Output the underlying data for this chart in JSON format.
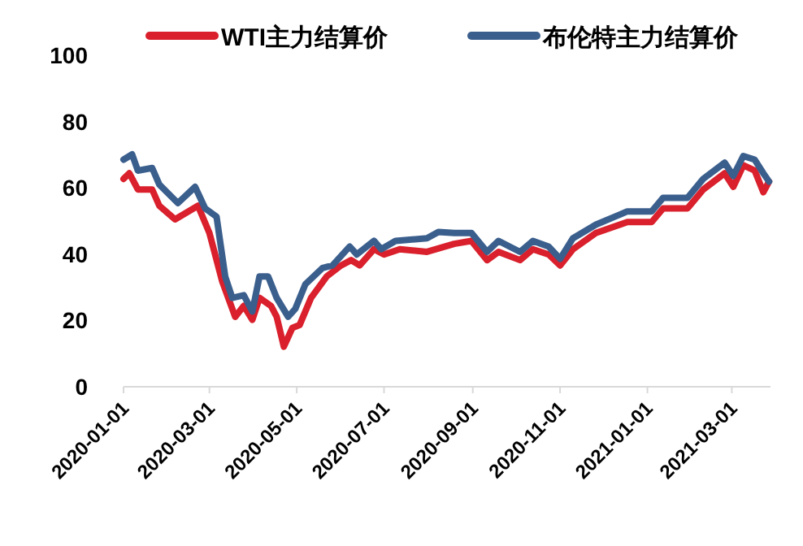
{
  "chart_data": {
    "type": "line",
    "legend": "top",
    "grid": false,
    "line_style": "solid",
    "marker": "none",
    "xlim": [
      "2020-01-01",
      "2021-03-28"
    ],
    "ylim": [
      0,
      100
    ],
    "yticks": [
      0,
      20,
      40,
      60,
      80,
      100
    ],
    "xticks": [
      "2020-01-01",
      "2020-03-01",
      "2020-05-01",
      "2020-07-01",
      "2020-09-01",
      "2020-11-01",
      "2021-01-01",
      "2021-03-01"
    ],
    "series": [
      {
        "name": "WTI主力结算价",
        "color": "#d9202c",
        "x": [
          "2020-01-01",
          "2020-01-05",
          "2020-01-11",
          "2020-01-21",
          "2020-01-26",
          "2020-02-06",
          "2020-02-22",
          "2020-03-01",
          "2020-03-10",
          "2020-03-19",
          "2020-03-25",
          "2020-03-31",
          "2020-04-05",
          "2020-04-13",
          "2020-04-17",
          "2020-04-22",
          "2020-04-28",
          "2020-05-03",
          "2020-05-11",
          "2020-05-22",
          "2020-06-01",
          "2020-06-08",
          "2020-06-14",
          "2020-06-24",
          "2020-07-01",
          "2020-07-12",
          "2020-07-31",
          "2020-08-19",
          "2020-08-31",
          "2020-09-11",
          "2020-09-19",
          "2020-10-04",
          "2020-10-13",
          "2020-10-24",
          "2020-11-01",
          "2020-11-10",
          "2020-11-26",
          "2020-12-18",
          "2021-01-04",
          "2021-01-12",
          "2021-01-29",
          "2021-02-09",
          "2021-02-24",
          "2021-03-02",
          "2021-03-09",
          "2021-03-17",
          "2021-03-23",
          "2021-03-27"
        ],
        "values": [
          62.7,
          64.4,
          59.5,
          59.5,
          54.6,
          50.5,
          54.6,
          46.4,
          31.7,
          21.1,
          24.4,
          20.2,
          26.8,
          24.4,
          21.1,
          12.1,
          17.8,
          18.6,
          26.8,
          33.3,
          36.6,
          38.2,
          36.6,
          41.5,
          39.9,
          41.5,
          40.7,
          43.1,
          44,
          38.2,
          40.7,
          38.2,
          41.5,
          39.9,
          36.6,
          41.5,
          46.4,
          49.7,
          49.7,
          53.8,
          53.8,
          59.5,
          64.4,
          60.3,
          66.8,
          65.2,
          58.7,
          61.9
        ]
      },
      {
        "name": "布伦特主力结算价",
        "color": "#3b5f8d",
        "x": [
          "2020-01-01",
          "2020-01-07",
          "2020-01-11",
          "2020-01-21",
          "2020-01-26",
          "2020-02-08",
          "2020-02-20",
          "2020-02-27",
          "2020-03-06",
          "2020-03-12",
          "2020-03-17",
          "2020-03-25",
          "2020-03-31",
          "2020-04-05",
          "2020-04-11",
          "2020-04-17",
          "2020-04-25",
          "2020-04-30",
          "2020-05-07",
          "2020-05-19",
          "2020-05-26",
          "2020-06-07",
          "2020-06-12",
          "2020-06-24",
          "2020-06-29",
          "2020-07-09",
          "2020-07-31",
          "2020-08-08",
          "2020-08-19",
          "2020-08-31",
          "2020-09-11",
          "2020-09-19",
          "2020-10-04",
          "2020-10-13",
          "2020-10-24",
          "2020-11-01",
          "2020-11-10",
          "2020-11-26",
          "2020-12-18",
          "2021-01-04",
          "2021-01-12",
          "2021-01-29",
          "2021-02-09",
          "2021-02-24",
          "2021-03-02",
          "2021-03-09",
          "2021-03-17",
          "2021-03-23",
          "2021-03-27"
        ],
        "values": [
          68.5,
          70.1,
          65.2,
          66,
          61,
          55.4,
          60.3,
          53.8,
          51.3,
          33.3,
          26.8,
          27.6,
          22.7,
          33.3,
          33.3,
          26.8,
          21.1,
          23.5,
          30.9,
          35.8,
          36.6,
          42.3,
          39.9,
          44,
          41.5,
          44,
          44.8,
          46.7,
          46.4,
          46.4,
          40.7,
          44,
          40.7,
          44,
          42.3,
          38.6,
          44.8,
          48.9,
          52.9,
          52.9,
          57,
          57,
          62.7,
          67.6,
          63.6,
          69.6,
          68.5,
          64.4,
          61.9
        ]
      }
    ]
  }
}
